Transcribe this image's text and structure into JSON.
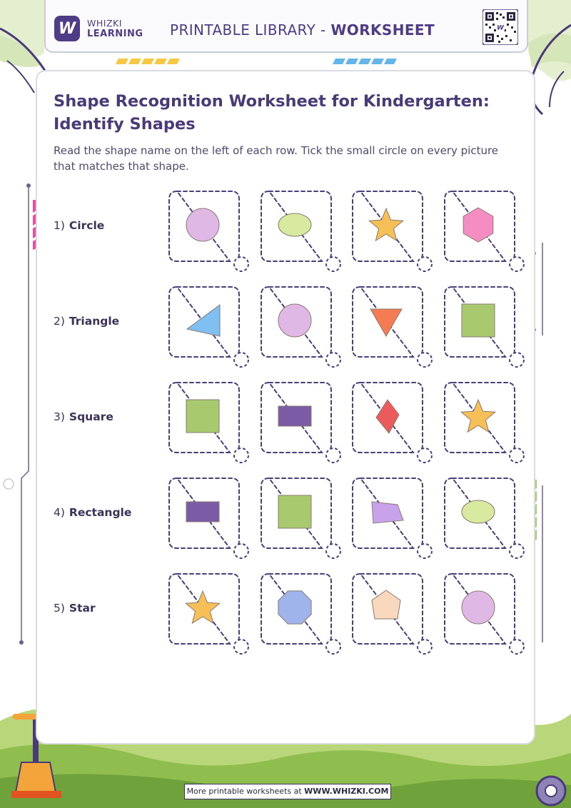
{
  "brand": {
    "line1": "WHIZKI",
    "line2": "LEARNING",
    "logo_letter": "W"
  },
  "header": {
    "title_prefix": "PRINTABLE LIBRARY - ",
    "title_bold": "WORKSHEET"
  },
  "worksheet": {
    "title": "Shape Recognition Worksheet for Kindergarten: Identify Shapes",
    "instructions": "Read the shape name on the left of each row. Tick the small circle on every picture that matches that shape.",
    "rows": [
      {
        "number": "1)",
        "name": "Circle",
        "options": [
          {
            "shape": "circle",
            "color": "#e0b8e6"
          },
          {
            "shape": "oval",
            "color": "#d7eaa0"
          },
          {
            "shape": "star",
            "color": "#f7bf57"
          },
          {
            "shape": "hexagon",
            "color": "#f58cc2"
          }
        ]
      },
      {
        "number": "2)",
        "name": "Triangle",
        "options": [
          {
            "shape": "triangle-left",
            "color": "#7fbff2"
          },
          {
            "shape": "circle",
            "color": "#e0b8e6"
          },
          {
            "shape": "triangle-down",
            "color": "#f47b52"
          },
          {
            "shape": "square",
            "color": "#a9c96e"
          }
        ]
      },
      {
        "number": "3)",
        "name": "Square",
        "options": [
          {
            "shape": "square",
            "color": "#a9c96e"
          },
          {
            "shape": "rectangle",
            "color": "#7b5aa6"
          },
          {
            "shape": "kite",
            "color": "#ec5b5b"
          },
          {
            "shape": "star",
            "color": "#f7bf57"
          }
        ]
      },
      {
        "number": "4)",
        "name": "Rectangle",
        "options": [
          {
            "shape": "rectangle",
            "color": "#7b5aa6"
          },
          {
            "shape": "square",
            "color": "#a9c96e"
          },
          {
            "shape": "trapezoid",
            "color": "#c8a2ea"
          },
          {
            "shape": "oval",
            "color": "#d7eaa0"
          }
        ]
      },
      {
        "number": "5)",
        "name": "Star",
        "options": [
          {
            "shape": "star",
            "color": "#f7bf57"
          },
          {
            "shape": "octagon",
            "color": "#9fb4ea"
          },
          {
            "shape": "pentagon",
            "color": "#f9d8bd"
          },
          {
            "shape": "circle",
            "color": "#e0b8e6"
          }
        ]
      }
    ]
  },
  "footer": {
    "text": "More printable worksheets at ",
    "url": "WWW.WHIZKI.COM"
  },
  "colors": {
    "brand": "#4e3c86",
    "card_border": "#4a3f7a"
  }
}
